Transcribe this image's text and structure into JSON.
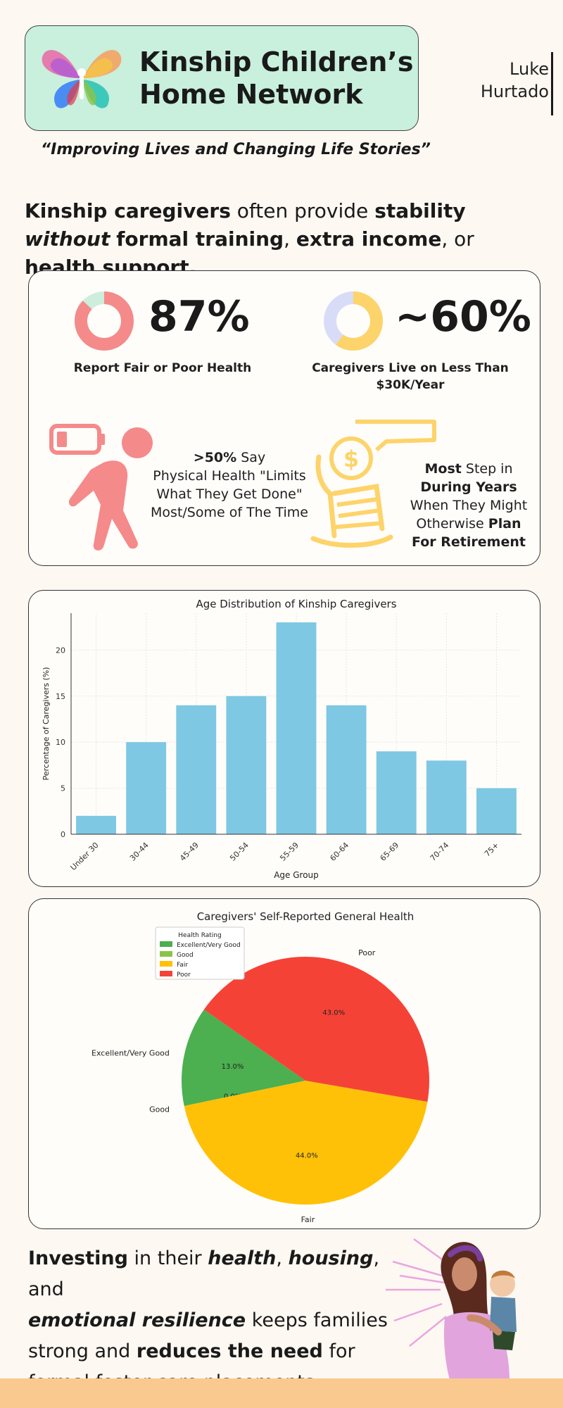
{
  "header": {
    "org_name": "Kinship Children’s Home Network",
    "tagline": "“Improving Lives and Changing Life Stories”",
    "author_first": "Luke",
    "author_last": "Hurtado"
  },
  "headline": {
    "part1": "Kinship caregivers",
    "part2": " often provide ",
    "part3": "stability",
    "part4": "without",
    "part5": "formal training",
    "part6": ", ",
    "part7": "extra income",
    "part8": ", or ",
    "part9": "health support."
  },
  "stats": {
    "health_value": "87%",
    "health_label": "Report Fair or Poor Health",
    "health_fraction": 0.87,
    "income_value": "~60%",
    "income_label": "Caregivers Live on Less Than $30K/Year",
    "income_fraction": 0.6,
    "limits_bold": ">50%",
    "limits_text1": " Say",
    "limits_text2": "Physical Health \"Limits What They Get Done\" Most/Some of The Time",
    "retire_bold1": "Most",
    "retire_text1": " Step in",
    "retire_bold2": "During Years",
    "retire_text2": "When They Might Otherwise ",
    "retire_bold3": "Plan",
    "retire_bold4": "For Retirement",
    "colors": {
      "red": "#f58a8a",
      "mint": "#cdeedc",
      "yellow": "#fdd46b",
      "lavender": "#d9dcf7",
      "coin": "#fdd46b"
    }
  },
  "chart_data": [
    {
      "type": "bar",
      "title": "Age Distribution of Kinship Caregivers",
      "xlabel": "Age Group",
      "ylabel": "Percentage of Caregivers (%)",
      "categories": [
        "Under 30",
        "30-44",
        "45-49",
        "50-54",
        "55-59",
        "60-64",
        "65-69",
        "70-74",
        "75+"
      ],
      "values": [
        2,
        10,
        14,
        15,
        23,
        14,
        9,
        8,
        5
      ],
      "yticks": [
        0,
        5,
        10,
        15,
        20
      ],
      "ylim": [
        0,
        24
      ],
      "grid": true,
      "color": "#7ec8e3"
    },
    {
      "type": "pie",
      "title": "Caregivers' Self-Reported General Health",
      "legend_title": "Health Rating",
      "legend_position": "top-left",
      "labels": [
        "Excellent/Very Good",
        "Good",
        "Fair",
        "Poor"
      ],
      "values": [
        13.0,
        0.0,
        44.0,
        43.0
      ],
      "pct_labels": [
        "13.0%",
        "0.0%",
        "44.0%",
        "43.0%"
      ],
      "colors": [
        "#4caf50",
        "#8bc34a",
        "#ffc107",
        "#f44336"
      ]
    }
  ],
  "closing": {
    "b1": "Investing",
    "t1": " in their ",
    "b2": "health",
    "t2": ", ",
    "b3": "housing",
    "t3": ", and",
    "b4": "emotional resilience",
    "t4": " keeps families strong and ",
    "b5": "reduces the need",
    "t5": " for formal foster care placements."
  }
}
